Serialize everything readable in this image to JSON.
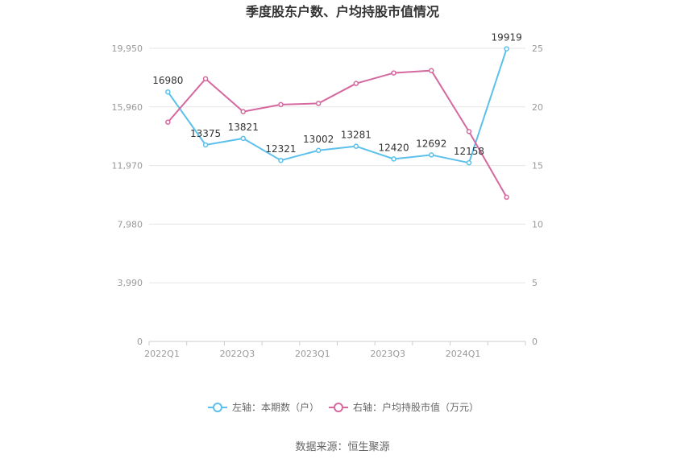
{
  "chart_data": {
    "type": "line",
    "title": "季度股东户数、户均持股市值情况",
    "x": [
      "2022Q1",
      "2022Q2",
      "2022Q3",
      "2022Q4",
      "2023Q1",
      "2023Q2",
      "2023Q3",
      "2023Q4",
      "2024Q1",
      "2024Q2"
    ],
    "x_tick_labels": [
      "2022Q1",
      "2022Q3",
      "2023Q1",
      "2023Q3",
      "2024Q1"
    ],
    "y_left": {
      "min": 0,
      "max": 19950,
      "ticks": [
        "0",
        "3,990",
        "7,980",
        "11,970",
        "15,960",
        "19,950"
      ]
    },
    "y_right": {
      "min": 0,
      "max": 25,
      "ticks": [
        "0",
        "5",
        "10",
        "15",
        "20",
        "25"
      ]
    },
    "series": [
      {
        "name": "左轴：本期数（户）",
        "axis": "left",
        "color": "#5bc0eb",
        "values": [
          16980,
          13375,
          13821,
          12321,
          13002,
          13281,
          12420,
          12692,
          12158,
          19919
        ],
        "labels": [
          "16980",
          "13375",
          "13821",
          "12321",
          "13002",
          "13281",
          "12420",
          "12692",
          "12158",
          "19919"
        ]
      },
      {
        "name": "右轴：户均持股市值（万元）",
        "axis": "right",
        "color": "#d4689f",
        "values": [
          18.7,
          22.4,
          19.6,
          20.2,
          20.3,
          22.0,
          22.9,
          23.1,
          17.9,
          12.3
        ]
      }
    ],
    "grid": true,
    "legend_position": "bottom"
  },
  "source": "数据来源：恒生聚源"
}
